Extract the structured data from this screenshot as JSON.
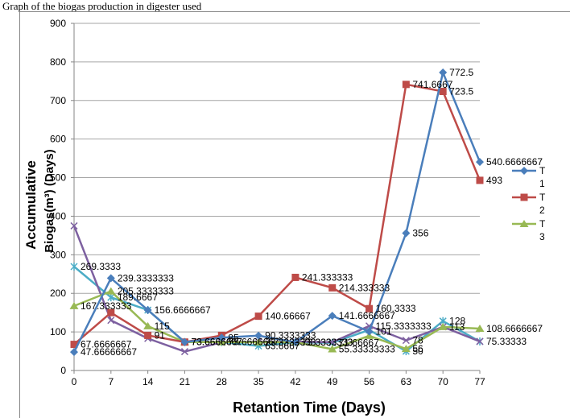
{
  "header": {
    "text": "Graph of the biogas production in digester used"
  },
  "chart_data": {
    "type": "line",
    "x": [
      0,
      7,
      14,
      21,
      28,
      35,
      42,
      49,
      56,
      63,
      70,
      77
    ],
    "xlabel": "Retantion Time (Days)",
    "ylabel_line1": "Accumulative",
    "ylabel_line2": "Biogas(m³) (Days)",
    "ylim": [
      0,
      900
    ],
    "yticks": [
      0,
      100,
      200,
      300,
      400,
      500,
      600,
      700,
      800,
      900
    ],
    "grid": true,
    "legend_position": "right",
    "series": [
      {
        "legend_top": "T",
        "legend_bottom": "1",
        "color": "#4a7ebb",
        "marker": "diamond",
        "values": [
          47.66666667,
          239.3333333,
          156.6666667,
          73.6666667,
          85,
          90.3333333,
          73.3333333,
          141.6666667,
          101,
          356,
          772.5,
          540.6666667
        ],
        "labels": [
          "47.66666667",
          "239.3333333",
          "156.6666667",
          "73.6666667",
          "85",
          "90.3333333",
          "73.3333333",
          "141.6666667",
          "101",
          "356",
          "772.5",
          "540.6666667"
        ]
      },
      {
        "legend_top": "T",
        "legend_bottom": "2",
        "color": "#be4b48",
        "marker": "square",
        "values": [
          67.6666667,
          150,
          91,
          73.6666667,
          91,
          140.66667,
          241.333333,
          214.333333,
          160.3333,
          741.6667,
          723.5,
          493
        ],
        "labels": [
          "67.6666667",
          "",
          "91",
          "",
          "",
          "140.66667",
          "241.333333",
          "214.333333",
          "160.3333",
          "741.6667",
          "723.5",
          "493"
        ]
      },
      {
        "legend_top": "T",
        "legend_bottom": "3",
        "color": "#98b954",
        "marker": "triangle",
        "values": [
          167.333333,
          205.3333333,
          115,
          73.6666667,
          73.6666667,
          73.3333333,
          73.3333333,
          55.33333333,
          90,
          56,
          113,
          108.6666667
        ],
        "labels": [
          "167.333333",
          "205.3333333",
          "115",
          "73.6666667",
          "73.6666667",
          "73.3333333",
          "73.3333333",
          "55.33333333",
          "",
          "56",
          "113",
          "108.6666667"
        ]
      },
      {
        "legend_top": "",
        "legend_bottom": "",
        "color": "#7d60a0",
        "marker": "x",
        "values": [
          375,
          130,
          83,
          49,
          73,
          75,
          75,
          73.3333,
          115.3333333,
          78,
          113,
          75.33333
        ],
        "labels": [
          "",
          "",
          "",
          "",
          "",
          "",
          "",
          "",
          "115.3333333",
          "78",
          "",
          "75.33333"
        ]
      },
      {
        "legend_top": "",
        "legend_bottom": "",
        "color": "#4bacc6",
        "marker": "star",
        "values": [
          269.3333,
          189.6667,
          156.6667,
          73.6666667,
          73.6666667,
          63.6667,
          73.3333,
          71.66667,
          105,
          50,
          128,
          75.33333
        ],
        "labels": [
          "269.3333",
          "189.6667",
          "",
          "",
          "",
          "63.6667",
          "",
          "71.66667",
          "",
          "50",
          "128",
          ""
        ]
      }
    ]
  }
}
